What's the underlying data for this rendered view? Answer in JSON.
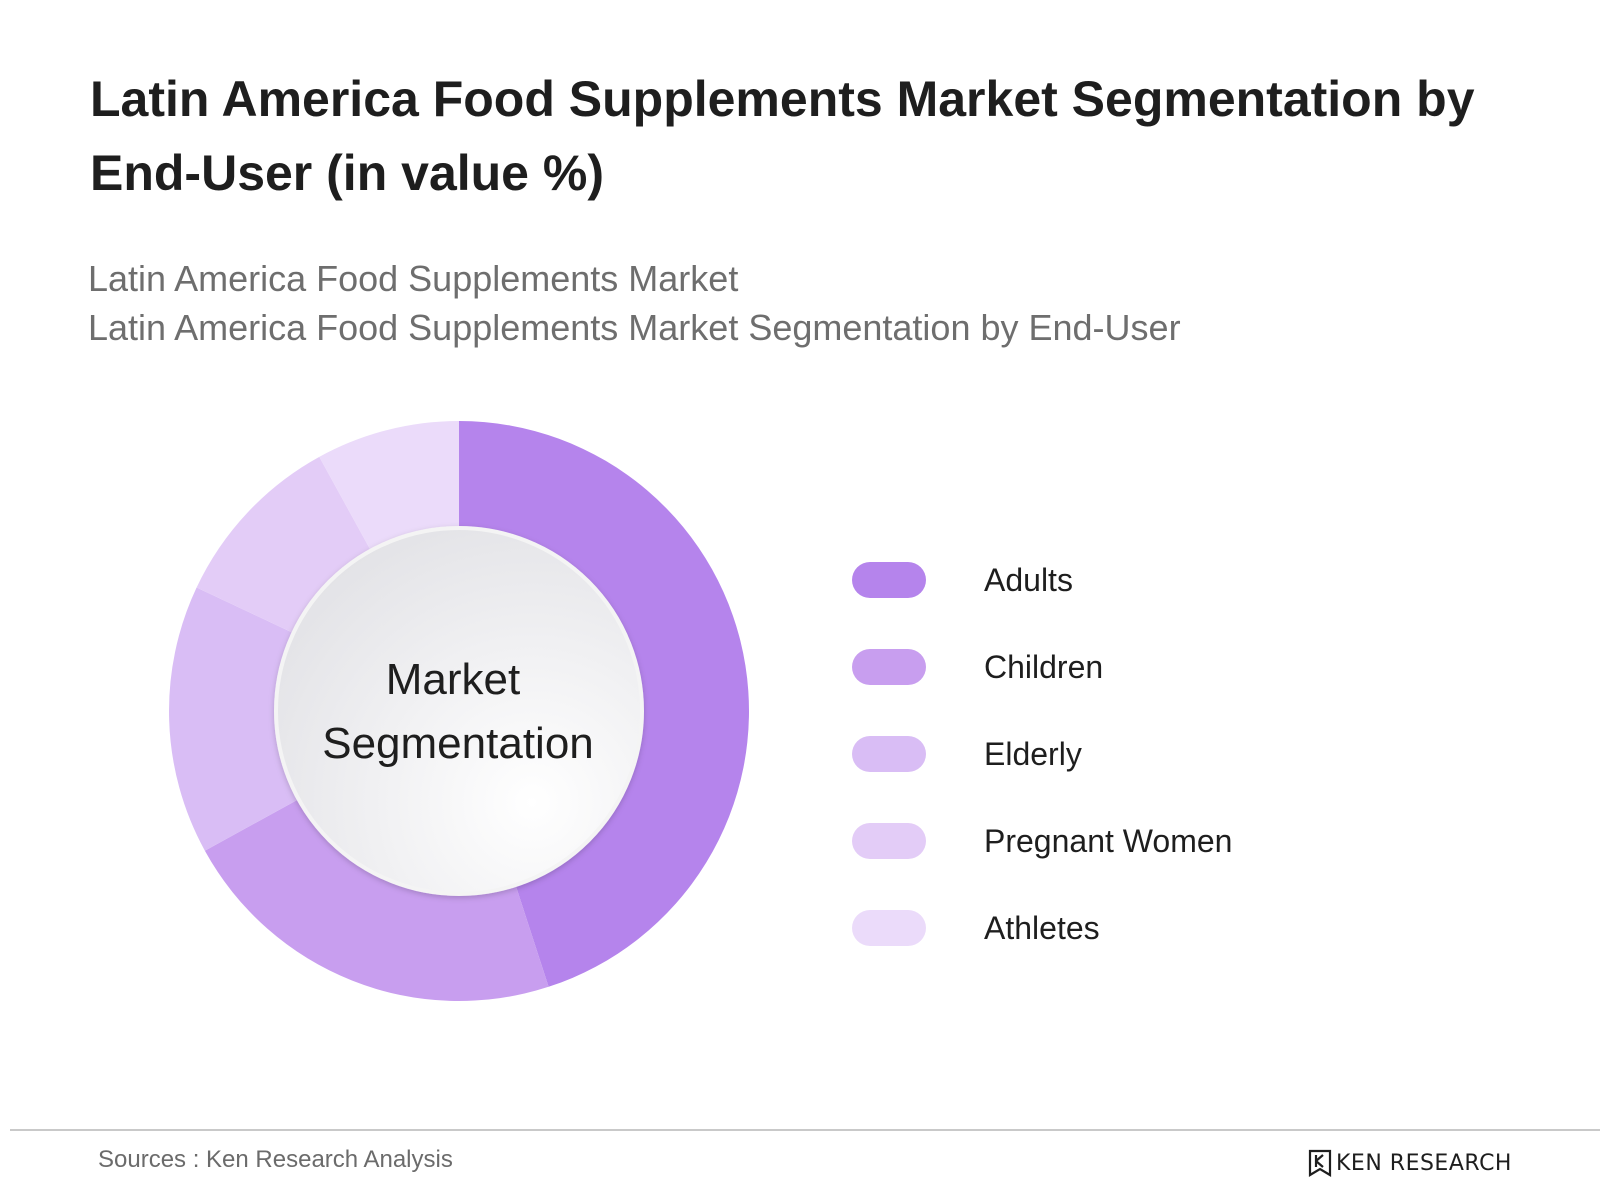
{
  "title": "Latin America Food Supplements Market Segmentation by End-User (in value %)",
  "subtitle_1": "Latin America Food Supplements Market",
  "subtitle_2": "Latin America Food Supplements Market Segmentation by End-User",
  "source": "Sources : Ken Research Analysis",
  "brand": {
    "logo_text": "KEN RESEARCH",
    "logo_icon": "ken-research-logo-icon"
  },
  "chart_data": {
    "type": "pie",
    "style": "donut",
    "center_label": [
      "Market",
      "Segmentation"
    ],
    "categories": [
      "Adults",
      "Children",
      "Elderly",
      "Pregnant Women",
      "Athletes"
    ],
    "values": [
      45,
      22,
      15,
      10,
      8
    ],
    "colors": [
      "#b584ec",
      "#c89eef",
      "#d9bdf5",
      "#e3ccf7",
      "#ebdbfa"
    ],
    "legend": "right"
  }
}
